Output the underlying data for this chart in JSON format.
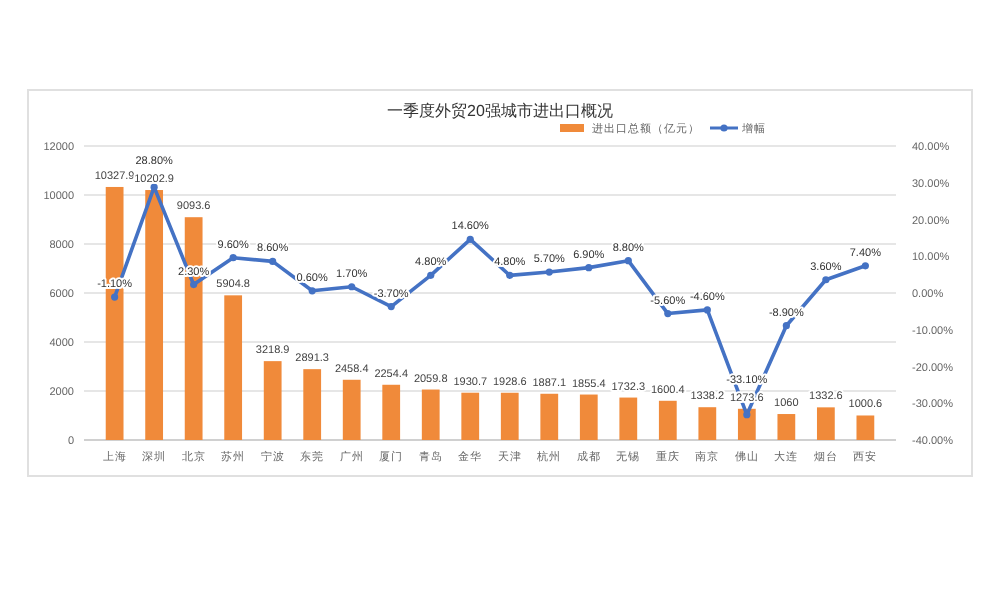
{
  "chart_data": {
    "type": "bar",
    "title": "一季度外贸20强城市进出口概况",
    "categories": [
      "上海",
      "深圳",
      "北京",
      "苏州",
      "宁波",
      "东莞",
      "广州",
      "厦门",
      "青岛",
      "金华",
      "天津",
      "杭州",
      "成都",
      "无锡",
      "重庆",
      "南京",
      "佛山",
      "大连",
      "烟台",
      "西安"
    ],
    "series": [
      {
        "name": "进出口总额（亿元）",
        "color": "#f08a3a",
        "values": [
          10327.9,
          10202.9,
          9093.6,
          5904.8,
          3218.9,
          2891.3,
          2458.4,
          2254.4,
          2059.8,
          1930.7,
          1928.6,
          1887.1,
          1855.4,
          1732.3,
          1600.4,
          1338.2,
          1273.6,
          1060,
          1332.6,
          1000.6
        ],
        "value_labels": [
          "10327.9",
          "10202.9",
          "9093.6",
          "5904.8",
          "3218.9",
          "2891.3",
          "2458.4",
          "2254.4",
          "2059.8",
          "1930.7",
          "1928.6",
          "1887.1",
          "1855.4",
          "1732.3",
          "1600.4",
          "1338.2",
          "1273.6",
          "1060",
          "1332.6",
          "1000.6"
        ]
      },
      {
        "name": "增幅",
        "type": "line",
        "axis": "y2",
        "color": "#4472c4",
        "values": [
          -1.1,
          28.8,
          2.3,
          9.6,
          8.6,
          0.6,
          1.7,
          -3.7,
          4.8,
          14.6,
          4.8,
          5.7,
          6.9,
          8.8,
          -5.6,
          -4.6,
          -33.1,
          -8.9,
          3.6,
          7.4
        ],
        "value_labels": [
          "-1.10%",
          "28.80%",
          "2.30%",
          "9.60%",
          "8.60%",
          "0.60%",
          "1.70%",
          "-3.70%",
          "4.80%",
          "14.60%",
          "4.80%",
          "5.70%",
          "6.90%",
          "8.80%",
          "-5.60%",
          "-4.60%",
          "-33.10%",
          "-8.90%",
          "3.60%",
          "7.40%"
        ]
      }
    ],
    "ylim": [
      0,
      12000
    ],
    "yticks": [
      0,
      2000,
      4000,
      6000,
      8000,
      10000,
      12000
    ],
    "y2lim": [
      -40,
      40
    ],
    "y2ticks": [
      {
        "value": -40,
        "label": "-40.00%"
      },
      {
        "value": -30,
        "label": "-30.00%"
      },
      {
        "value": -20,
        "label": "-20.00%"
      },
      {
        "value": -10,
        "label": "-10.00%"
      },
      {
        "value": 0,
        "label": "0.00%"
      },
      {
        "value": 10,
        "label": "10.00%"
      },
      {
        "value": 20,
        "label": "20.00%"
      },
      {
        "value": 30,
        "label": "30.00%"
      },
      {
        "value": 40,
        "label": "40.00%"
      }
    ],
    "grid": "y",
    "legend": "top right",
    "marker": "circle",
    "line_style": "solid"
  }
}
